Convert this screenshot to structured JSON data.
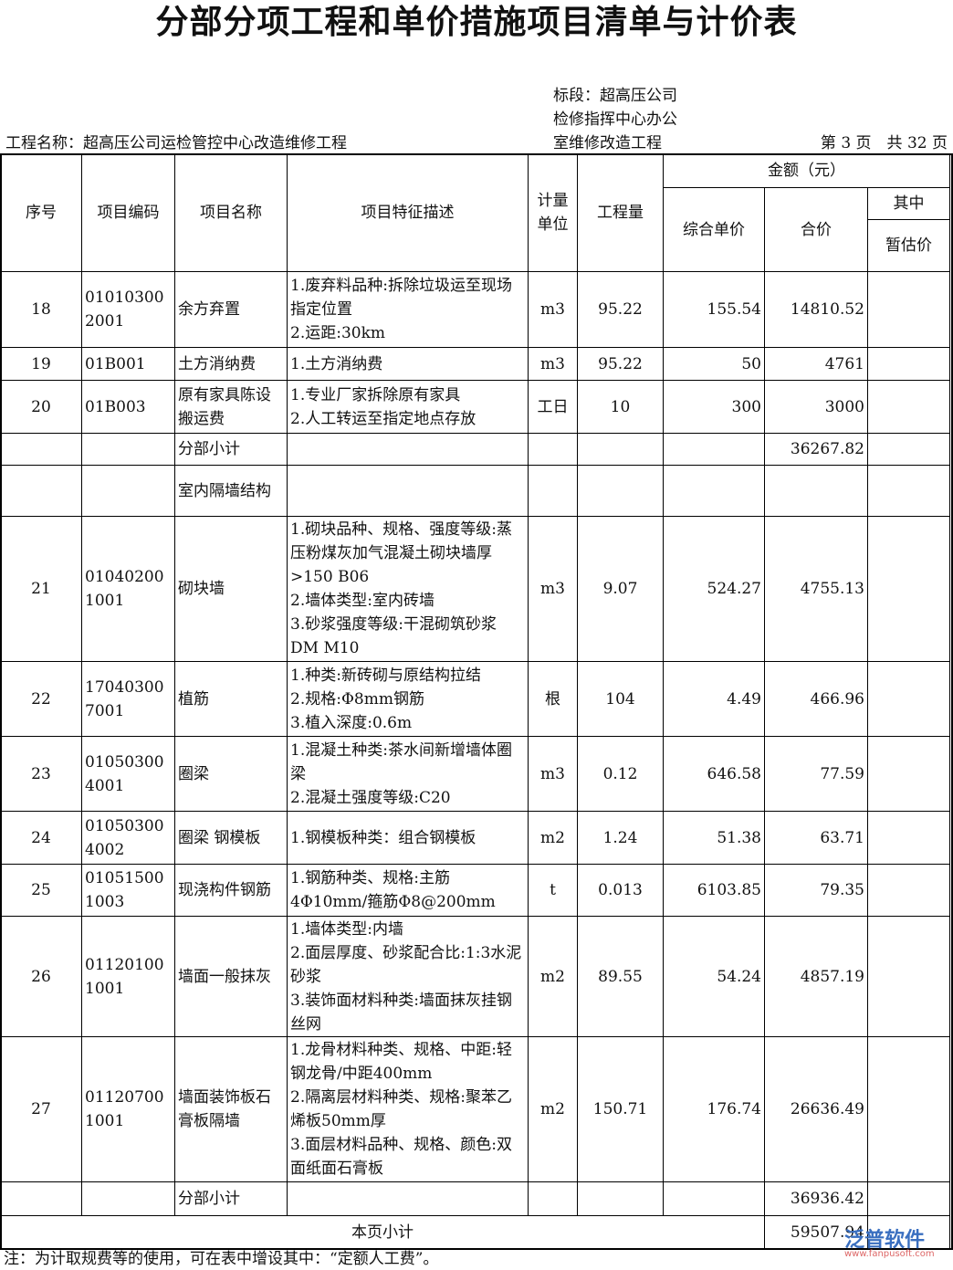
{
  "title": "分部分项工程和单价措施项目清单与计价表",
  "header": {
    "section_lines": [
      "标段：超高压公司",
      "检修指挥中心办公",
      "室维修改造工程"
    ],
    "project_name": "工程名称：超高压公司运检管控中心改造维修工程",
    "page_info": "第 3 页　共 32 页"
  },
  "columns": {
    "seq": "序号",
    "code": "项目编码",
    "name": "项目名称",
    "desc": "项目特征描述",
    "unit": "计量单位",
    "qty": "工程量",
    "amount": "金额（元）",
    "unit_price": "综合单价",
    "total": "合价",
    "of_which": "其中",
    "provisional": "暂估价"
  },
  "rows": [
    {
      "seq": "18",
      "code": "010103002001",
      "name": "余方弃置",
      "desc": "1.废弃料品种:拆除垃圾运至现场指定位置\n2.运距:30km",
      "unit": "m3",
      "qty": "95.22",
      "price": "155.54",
      "total": "14810.52",
      "prov": ""
    },
    {
      "seq": "19",
      "code": "01B001",
      "name": "土方消纳费",
      "desc": "1.土方消纳费",
      "unit": "m3",
      "qty": "95.22",
      "price": "50",
      "total": "4761",
      "prov": ""
    },
    {
      "seq": "20",
      "code": "01B003",
      "name": "原有家具陈设搬运费",
      "desc": "1.专业厂家拆除原有家具\n2.人工转运至指定地点存放",
      "unit": "工日",
      "qty": "10",
      "price": "300",
      "total": "3000",
      "prov": ""
    },
    {
      "seq": "",
      "code": "",
      "name": "分部小计",
      "desc": "",
      "unit": "",
      "qty": "",
      "price": "",
      "total": "36267.82",
      "prov": ""
    },
    {
      "seq": "",
      "code": "",
      "name": "室内隔墙结构",
      "desc": "",
      "unit": "",
      "qty": "",
      "price": "",
      "total": "",
      "prov": ""
    },
    {
      "seq": "21",
      "code": "010402001001",
      "name": "砌块墙",
      "desc": "1.砌块品种、规格、强度等级:蒸压粉煤灰加气混凝土砌块墙厚>150 B06\n2.墙体类型:室内砖墙\n3.砂浆强度等级:干混砌筑砂浆 DM M10",
      "unit": "m3",
      "qty": "9.07",
      "price": "524.27",
      "total": "4755.13",
      "prov": ""
    },
    {
      "seq": "22",
      "code": "170403007001",
      "name": "植筋",
      "desc": "1.种类:新砖砌与原结构拉结\n2.规格:Φ8mm钢筋\n3.植入深度:0.6m",
      "unit": "根",
      "qty": "104",
      "price": "4.49",
      "total": "466.96",
      "prov": ""
    },
    {
      "seq": "23",
      "code": "010503004001",
      "name": "圈梁",
      "desc": "1.混凝土种类:茶水间新增墙体圈梁\n2.混凝土强度等级:C20",
      "unit": "m3",
      "qty": "0.12",
      "price": "646.58",
      "total": "77.59",
      "prov": ""
    },
    {
      "seq": "24",
      "code": "010503004002",
      "name": "圈梁 钢模板",
      "desc": "1.钢模板种类：组合钢模板",
      "unit": "m2",
      "qty": "1.24",
      "price": "51.38",
      "total": "63.71",
      "prov": ""
    },
    {
      "seq": "25",
      "code": "010515001003",
      "name": "现浇构件钢筋",
      "desc": "1.钢筋种类、规格:主筋4Φ10mm/箍筋Φ8@200mm",
      "unit": "t",
      "qty": "0.013",
      "price": "6103.85",
      "total": "79.35",
      "prov": ""
    },
    {
      "seq": "26",
      "code": "011201001001",
      "name": "墙面一般抹灰",
      "desc": "1.墙体类型:内墙\n2.面层厚度、砂浆配合比:1:3水泥砂浆\n3.装饰面材料种类:墙面抹灰挂钢丝网",
      "unit": "m2",
      "qty": "89.55",
      "price": "54.24",
      "total": "4857.19",
      "prov": ""
    },
    {
      "seq": "27",
      "code": "011207001001",
      "name": "墙面装饰板石膏板隔墙",
      "desc": "1.龙骨材料种类、规格、中距:轻钢龙骨/中距400mm\n2.隔离层材料种类、规格:聚苯乙烯板50mm厚\n3.面层材料品种、规格、颜色:双面纸面石膏板",
      "unit": "m2",
      "qty": "150.71",
      "price": "176.74",
      "total": "26636.49",
      "prov": ""
    },
    {
      "seq": "",
      "code": "",
      "name": "分部小计",
      "desc": "",
      "unit": "",
      "qty": "",
      "price": "",
      "total": "36936.42",
      "prov": ""
    }
  ],
  "page_subtotal": {
    "label": "本页小计",
    "total": "59507.94"
  },
  "note": "注：为计取规费等的使用，可在表中增设其中：“定额人工费”。",
  "watermark": {
    "brand": "泛普软件",
    "url": "www.fanpusoft.com"
  }
}
